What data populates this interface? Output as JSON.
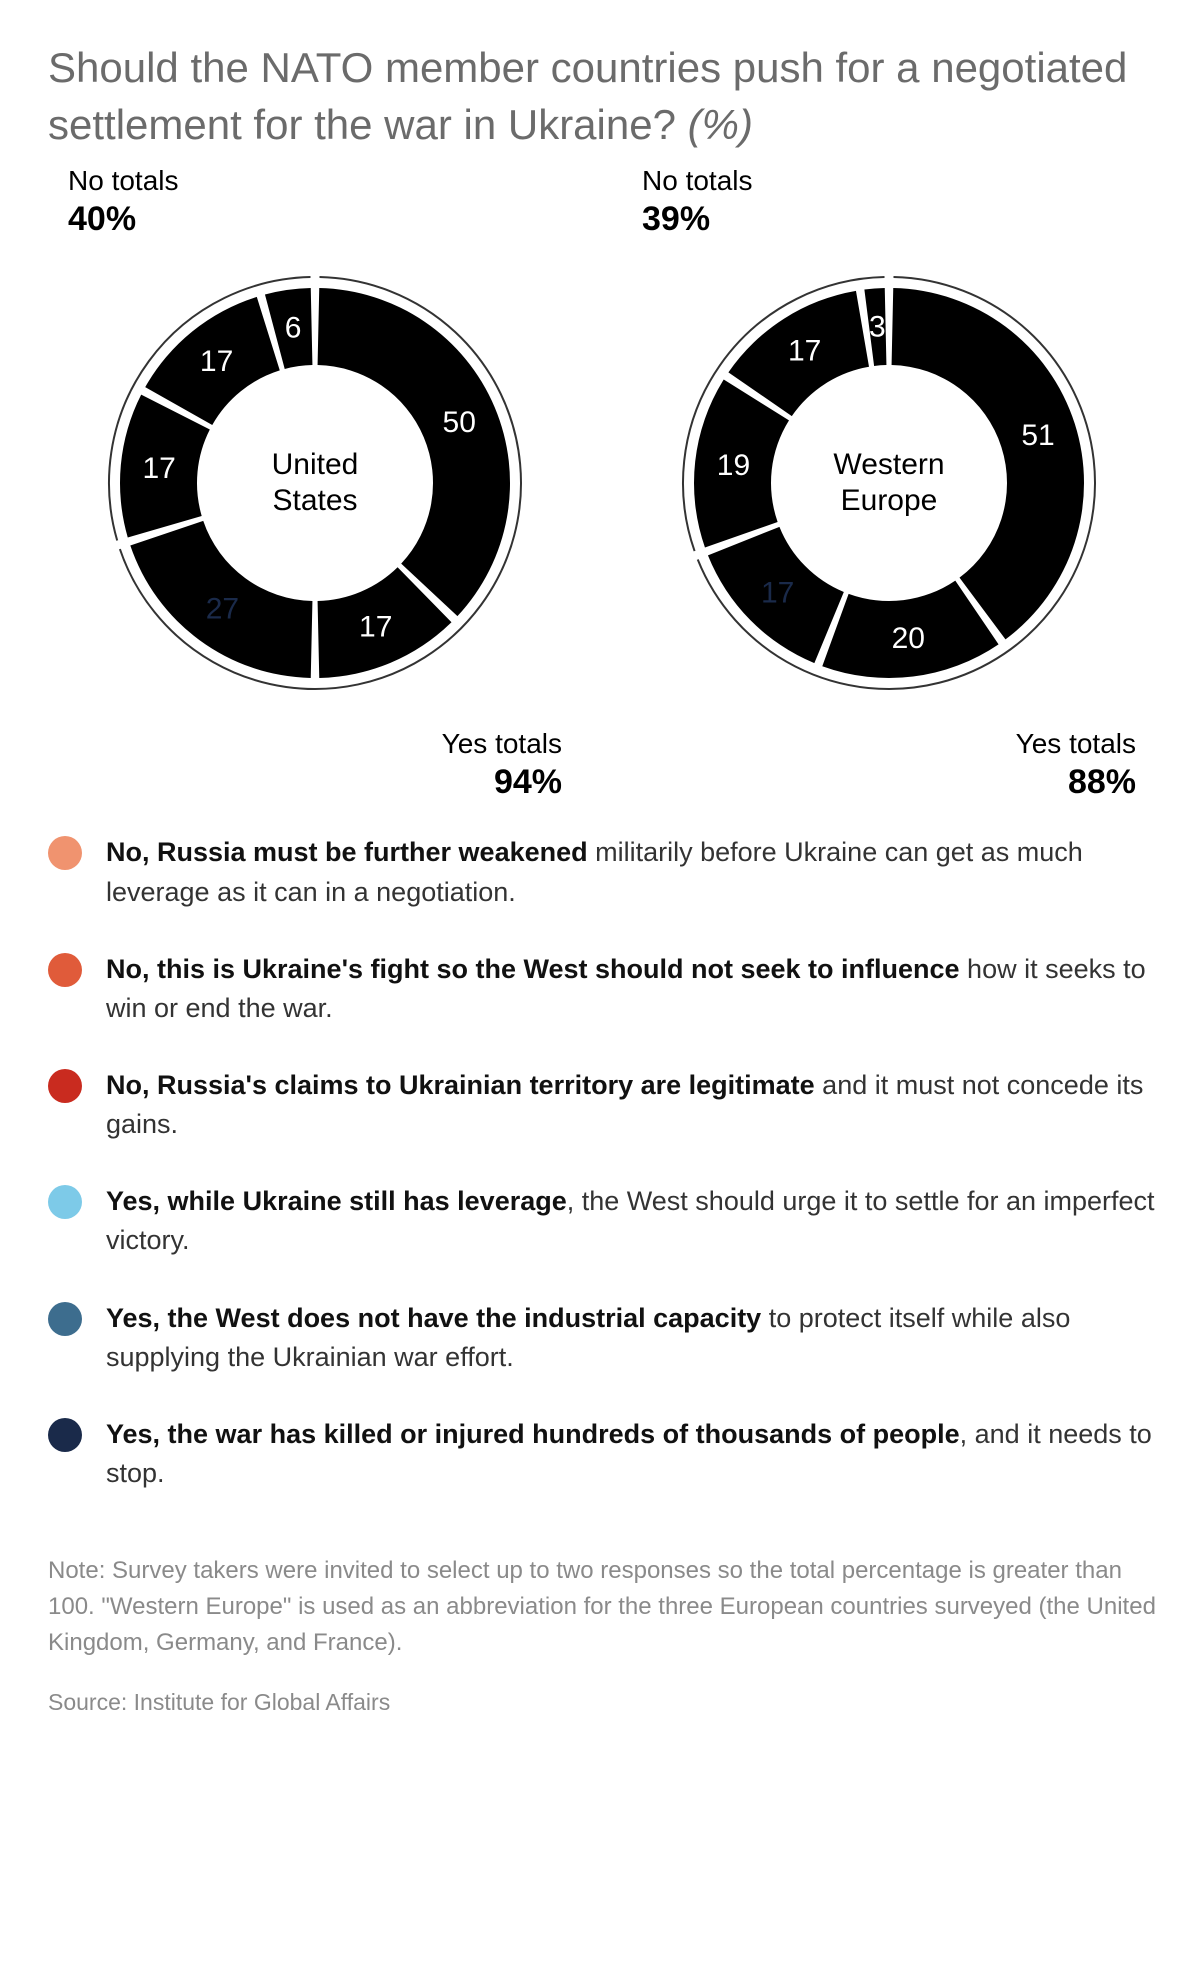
{
  "title_main": "Should the NATO member countries push for a negotiated settlement for the war in Ukraine? ",
  "title_em": "(%)",
  "colors": {
    "no_weaken": "#f0936f",
    "no_ukraine_fight": "#e05b3a",
    "no_legit": "#c92b1f",
    "yes_leverage": "#7dcae8",
    "yes_industrial": "#3d6d8e",
    "yes_killed": "#1a2a4a",
    "ring": "#333333",
    "value_label": "#ffffff",
    "value_label_dark": "#1a2a4a"
  },
  "donut": {
    "outer_r": 195,
    "inner_r": 118,
    "ring_r": 206,
    "gap_deg": 2.5,
    "value_fontsize": 30,
    "center_fontsize": 30,
    "ext_title_fontsize": 28,
    "ext_pct_fontsize": 34
  },
  "charts": [
    {
      "id": "us",
      "center_label": "United\nStates",
      "no_label": "No totals",
      "no_pct": "40%",
      "yes_label": "Yes totals",
      "yes_pct": "94%",
      "slices": [
        {
          "key": "yes_killed",
          "value": 50,
          "label": "50",
          "text_color": "value_label"
        },
        {
          "key": "yes_industrial",
          "value": 17,
          "label": "17",
          "text_color": "value_label"
        },
        {
          "key": "yes_leverage",
          "value": 27,
          "label": "27",
          "text_color": "value_label_dark"
        },
        {
          "key": "no_weaken",
          "value": 17,
          "label": "17",
          "text_color": "value_label"
        },
        {
          "key": "no_ukraine_fight",
          "value": 17,
          "label": "17",
          "text_color": "value_label"
        },
        {
          "key": "no_legit",
          "value": 6,
          "label": "6",
          "text_color": "value_label"
        }
      ]
    },
    {
      "id": "we",
      "center_label": "Western\nEurope",
      "no_label": "No totals",
      "no_pct": "39%",
      "yes_label": "Yes totals",
      "yes_pct": "88%",
      "slices": [
        {
          "key": "yes_killed",
          "value": 51,
          "label": "51",
          "text_color": "value_label"
        },
        {
          "key": "yes_industrial",
          "value": 20,
          "label": "20",
          "text_color": "value_label"
        },
        {
          "key": "yes_leverage",
          "value": 17,
          "label": "17",
          "text_color": "value_label_dark"
        },
        {
          "key": "no_weaken",
          "value": 19,
          "label": "19",
          "text_color": "value_label"
        },
        {
          "key": "no_ukraine_fight",
          "value": 17,
          "label": "17",
          "text_color": "value_label"
        },
        {
          "key": "no_legit",
          "value": 3,
          "label": "3",
          "text_color": "value_label"
        }
      ]
    }
  ],
  "legend": [
    {
      "color_key": "no_weaken",
      "bold": "No, Russia must be further weakened",
      "rest": " militarily before Ukraine can get as much leverage as it  can in a negotiation."
    },
    {
      "color_key": "no_ukraine_fight",
      "bold": "No, this is Ukraine's fight so the West should not seek to influence",
      "rest": " how it seeks to win or end the war."
    },
    {
      "color_key": "no_legit",
      "bold": "No, Russia's claims to Ukrainian territory are legitimate",
      "rest": " and it must not concede its gains."
    },
    {
      "color_key": "yes_leverage",
      "bold": "Yes, while Ukraine still has leverage",
      "rest": ", the West should urge it to settle for an imperfect victory."
    },
    {
      "color_key": "yes_industrial",
      "bold": "Yes, the West does not have the industrial capacity",
      "rest": " to protect itself while also supplying the Ukrainian war effort."
    },
    {
      "color_key": "yes_killed",
      "bold": "Yes, the war has killed or injured hundreds of thousands of people",
      "rest": ", and it needs to stop."
    }
  ],
  "note": "Note: Survey takers were invited to select up to two responses so the total percentage is greater than 100. \"Western Europe\" is used as an abbreviation for the three European countries surveyed (the United Kingdom, Germany, and France).",
  "source": "Source: Institute for Global Affairs"
}
